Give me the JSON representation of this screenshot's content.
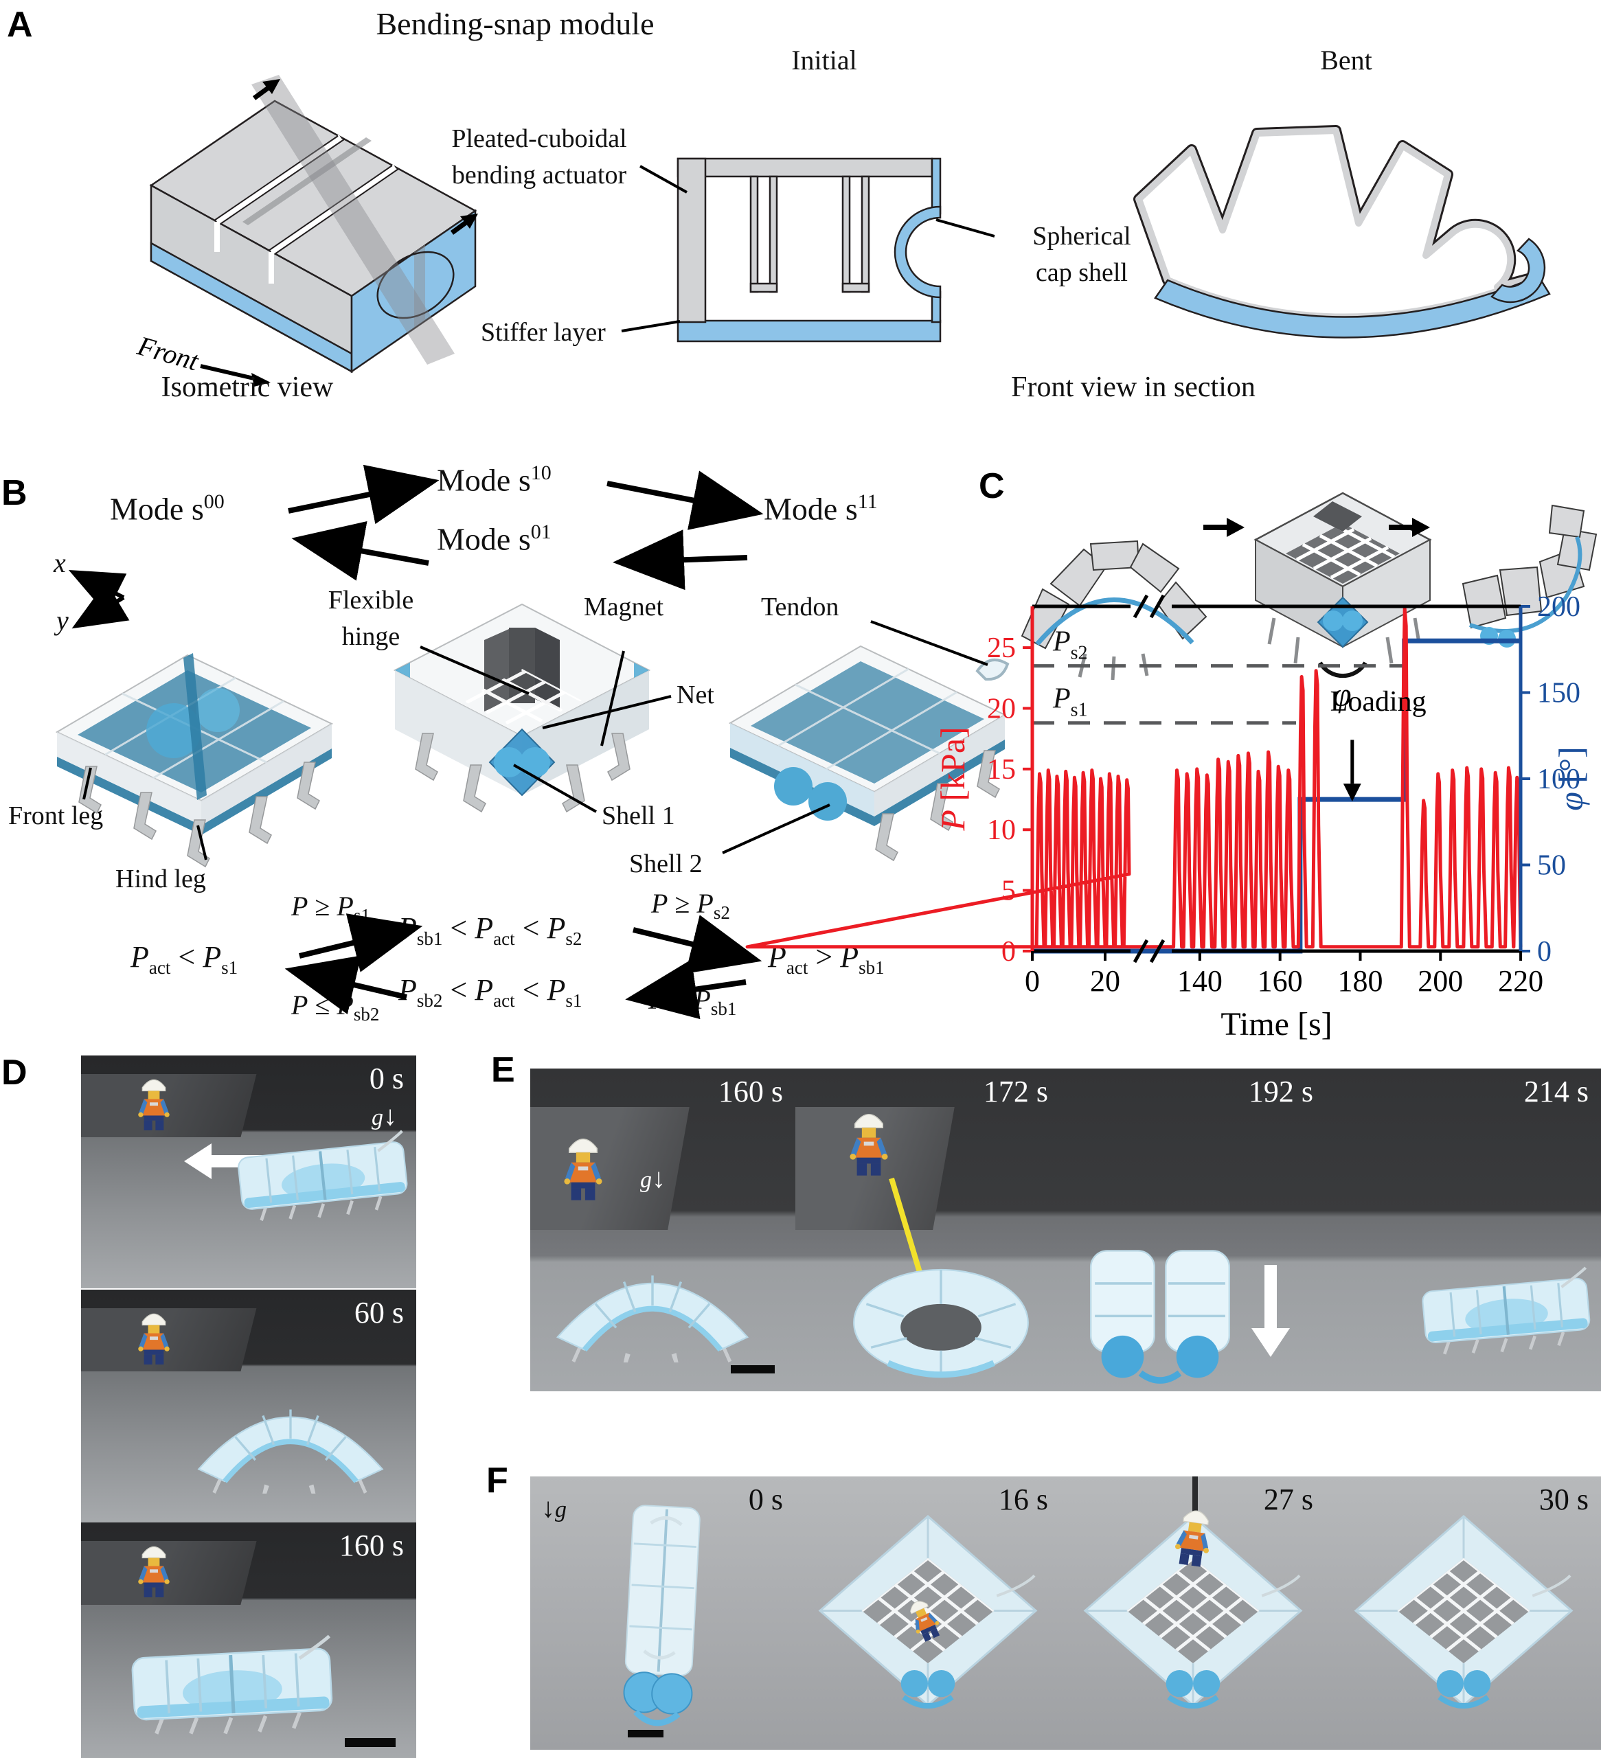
{
  "colors": {
    "accent_blue": "#8dc3e8",
    "deep_blue": "#2e7ca3",
    "shell_blue": "#4fa9d4",
    "chart_red": "#ec1c24",
    "chart_blue": "#1b4f9c",
    "dash_gray": "#58595b",
    "gray_fill": "#d2d3d5"
  },
  "a": {
    "label": "A",
    "title": "Bending-snap module",
    "initial": "Initial",
    "bent": "Bent",
    "pleated1": "Pleated-cuboidal",
    "pleated2": "bending actuator",
    "spherical1": "Spherical",
    "spherical2": "cap shell",
    "stiffer": "Stiffer layer",
    "front": "Front",
    "iso_caption": "Isometric view",
    "section_caption": "Front view in section"
  },
  "b": {
    "label": "B",
    "mode_prefix": "Mode s",
    "m00": "00",
    "m10": "10",
    "m01": "01",
    "m11": "11",
    "axis_x": "x",
    "axis_y": "y",
    "flexible1": "Flexible",
    "flexible2": "hinge",
    "magnet": "Magnet",
    "net": "Net",
    "tendon": "Tendon",
    "front_leg": "Front leg",
    "hind_leg": "Hind leg",
    "shell1": "Shell 1",
    "shell2": "Shell 2",
    "sym": {
      "P": "P",
      "act": "act",
      "s1": "s1",
      "s2": "s2",
      "sb1": "sb1",
      "sb2": "sb2",
      "lt": "<",
      "gt": ">",
      "ge": "≥",
      "le": "≤"
    }
  },
  "c": {
    "label": "C",
    "phi": "φ"
  },
  "d": {
    "label": "D",
    "g": "g",
    "down": "↓",
    "times": [
      "0 s",
      "60 s",
      "160 s"
    ]
  },
  "e": {
    "label": "E",
    "g": "g",
    "down": "↓",
    "times": [
      "160 s",
      "172 s",
      "192 s",
      "214 s"
    ]
  },
  "f": {
    "label": "F",
    "g": "g",
    "down": "↓",
    "times": [
      "0 s",
      "16 s",
      "27 s",
      "30 s"
    ]
  },
  "chart_data": {
    "type": "line",
    "xlabel": "Time [s]",
    "ylabel_left_main": "P",
    "ylabel_left_unit": " [kPa]",
    "ylabel_right_main": "φ",
    "ylabel_right_unit": " [°]",
    "x_ticks": [
      0,
      20,
      140,
      160,
      180,
      200,
      220
    ],
    "x_break_between": [
      27,
      133
    ],
    "xlim": [
      0,
      220
    ],
    "ylim_left": [
      0,
      28.4
    ],
    "yticks_left": [
      0,
      5,
      10,
      15,
      20,
      25
    ],
    "ylim_right": [
      0,
      200
    ],
    "yticks_right": [
      0,
      50,
      100,
      150,
      200
    ],
    "series": [
      {
        "name": "P",
        "axis": "left",
        "color": "#ec1c24",
        "style": "spikes",
        "baseline": 0.35,
        "spikes": [
          [
            2.2,
            14.6
          ],
          [
            4.6,
            14.9
          ],
          [
            7,
            14.4
          ],
          [
            9.4,
            14.8
          ],
          [
            11.8,
            14.3
          ],
          [
            14.2,
            14.7
          ],
          [
            16.6,
            14.9
          ],
          [
            19,
            14.2
          ],
          [
            21.4,
            14.6
          ],
          [
            23.8,
            14.4
          ],
          [
            26.2,
            14.1
          ],
          [
            134.5,
            14.9
          ],
          [
            137,
            14.6
          ],
          [
            139.5,
            15
          ],
          [
            142,
            14.5
          ],
          [
            144.8,
            15.8
          ],
          [
            147.3,
            15.6
          ],
          [
            149.8,
            16.1
          ],
          [
            152.3,
            16.3
          ],
          [
            154.8,
            14.8
          ],
          [
            157.3,
            16.4
          ],
          [
            159.8,
            15.2
          ],
          [
            162.3,
            14.9
          ],
          [
            165.6,
            22.6
          ],
          [
            169.2,
            23.1
          ],
          [
            191.3,
            28.2
          ],
          [
            196,
            12.4
          ],
          [
            199.6,
            14.6
          ],
          [
            203.2,
            14.9
          ],
          [
            206.8,
            15.1
          ],
          [
            210.4,
            15
          ],
          [
            213.9,
            14.7
          ],
          [
            217.2,
            15.1
          ],
          [
            219.3,
            14.3
          ]
        ]
      },
      {
        "name": "φ",
        "axis": "right",
        "color": "#1b4f9c",
        "style": "step",
        "points": [
          [
            0,
            0
          ],
          [
            165,
            0
          ],
          [
            165,
            88
          ],
          [
            191,
            88
          ],
          [
            191,
            180
          ],
          [
            220,
            180
          ]
        ]
      }
    ],
    "threshold_lines": [
      {
        "label_main": "P",
        "label_sub": "s2",
        "value": 23.5,
        "t_end": 191
      },
      {
        "label_main": "P",
        "label_sub": "s1",
        "value": 18.8,
        "t_end": 164
      }
    ],
    "annotation": {
      "text": "Loading",
      "t_text": 172.5,
      "p_text": 19.8,
      "arrow_t": 178,
      "arrow_from_p": 17.4,
      "arrow_to_p": 13.8
    },
    "legend": false,
    "grid": false
  }
}
